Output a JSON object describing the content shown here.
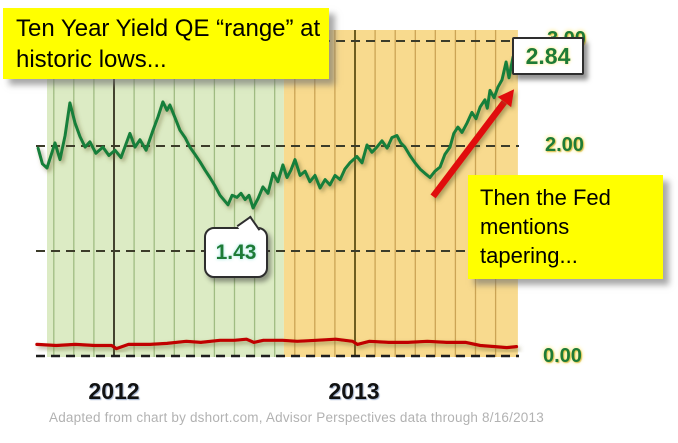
{
  "caption": "Adapted from chart by dshort.com, Advisor Perspectives data through 8/16/2013",
  "callouts": {
    "qe_range_lines": [
      "Ten Year Yield QE “range” at",
      "historic lows..."
    ],
    "tapering": "Then the Fed mentions tapering..."
  },
  "annotations": {
    "peak_label": "2.84",
    "low_label": "1.43"
  },
  "axis": {
    "y_ticks": [
      {
        "label": "3.00"
      },
      {
        "label": "2.00"
      },
      {
        "label": "0.00"
      }
    ],
    "x_ticks": [
      {
        "label": "2012"
      },
      {
        "label": "2013"
      }
    ]
  },
  "colors": {
    "qe_green_region": "#dcebc4",
    "orange_region": "#f8da8e",
    "yield_line_green": "#157f3a",
    "red_line": "#c00000",
    "range_line_blue": "#4d7ebc",
    "arrow_red": "#e01010",
    "callout_yellow": "#ffff00",
    "value_text_green": "#1e7b36"
  },
  "chart_data": {
    "type": "line",
    "title": "Ten Year Yield QE “range” at historic lows...",
    "x_axis": {
      "tick_labels": [
        "2012",
        "2013"
      ],
      "tick_positions_years": [
        2012,
        2013
      ],
      "range_years": [
        2011.66,
        2013.68
      ],
      "minor_gridline_interval_months": 1
    },
    "y_axis": {
      "tick_labels_visible": [
        "3.00",
        "2.00",
        "0.00"
      ],
      "gridline_values": [
        0,
        1,
        2,
        3
      ],
      "range": [
        0,
        3.1
      ],
      "units": "percent"
    },
    "regions": [
      {
        "name": "green-shaded QE range period",
        "t_from": 2011.722,
        "t_to": 2012.705,
        "color": "#dcebc4"
      },
      {
        "name": "orange-shaded period",
        "t_from": 2012.705,
        "t_to": 2013.676,
        "color": "#f8da8e"
      }
    ],
    "series": [
      {
        "name": "10-Year Treasury Yield",
        "color": "#157f3a",
        "points": [
          [
            2011.685,
            1.98
          ],
          [
            2011.703,
            1.83
          ],
          [
            2011.722,
            1.79
          ],
          [
            2011.755,
            2.03
          ],
          [
            2011.776,
            1.87
          ],
          [
            2011.797,
            2.1
          ],
          [
            2011.817,
            2.41
          ],
          [
            2011.838,
            2.22
          ],
          [
            2011.859,
            2.09
          ],
          [
            2011.88,
            1.99
          ],
          [
            2011.9,
            2.04
          ],
          [
            2011.925,
            1.93
          ],
          [
            2011.954,
            1.99
          ],
          [
            2011.979,
            1.91
          ],
          [
            2012.004,
            1.96
          ],
          [
            2012.029,
            1.89
          ],
          [
            2012.066,
            2.12
          ],
          [
            2012.087,
            1.99
          ],
          [
            2012.108,
            2.06
          ],
          [
            2012.133,
            1.96
          ],
          [
            2012.162,
            2.15
          ],
          [
            2012.183,
            2.28
          ],
          [
            2012.203,
            2.42
          ],
          [
            2012.22,
            2.34
          ],
          [
            2012.232,
            2.39
          ],
          [
            2012.253,
            2.27
          ],
          [
            2012.274,
            2.15
          ],
          [
            2012.295,
            2.08
          ],
          [
            2012.315,
            1.99
          ],
          [
            2012.336,
            1.92
          ],
          [
            2012.357,
            1.85
          ],
          [
            2012.378,
            1.77
          ],
          [
            2012.398,
            1.7
          ],
          [
            2012.419,
            1.62
          ],
          [
            2012.44,
            1.53
          ],
          [
            2012.473,
            1.44
          ],
          [
            2012.49,
            1.53
          ],
          [
            2012.51,
            1.51
          ],
          [
            2012.527,
            1.55
          ],
          [
            2012.544,
            1.49
          ],
          [
            2012.56,
            1.53
          ],
          [
            2012.577,
            1.41
          ],
          [
            2012.598,
            1.5
          ],
          [
            2012.618,
            1.61
          ],
          [
            2012.639,
            1.55
          ],
          [
            2012.66,
            1.74
          ],
          [
            2012.68,
            1.66
          ],
          [
            2012.701,
            1.82
          ],
          [
            2012.718,
            1.7
          ],
          [
            2012.734,
            1.77
          ],
          [
            2012.751,
            1.87
          ],
          [
            2012.772,
            1.72
          ],
          [
            2012.793,
            1.76
          ],
          [
            2012.813,
            1.66
          ],
          [
            2012.834,
            1.72
          ],
          [
            2012.855,
            1.6
          ],
          [
            2012.876,
            1.68
          ],
          [
            2012.896,
            1.63
          ],
          [
            2012.917,
            1.72
          ],
          [
            2012.938,
            1.68
          ],
          [
            2012.958,
            1.78
          ],
          [
            2012.979,
            1.84
          ],
          [
            2013.008,
            1.9
          ],
          [
            2013.029,
            1.84
          ],
          [
            2013.05,
            2.01
          ],
          [
            2013.07,
            1.94
          ],
          [
            2013.091,
            1.99
          ],
          [
            2013.112,
            2.05
          ],
          [
            2013.133,
            1.98
          ],
          [
            2013.153,
            2.08
          ],
          [
            2013.174,
            2.1
          ],
          [
            2013.19,
            2.03
          ],
          [
            2013.207,
            1.99
          ],
          [
            2013.228,
            1.91
          ],
          [
            2013.249,
            1.84
          ],
          [
            2013.27,
            1.78
          ],
          [
            2013.29,
            1.74
          ],
          [
            2013.311,
            1.7
          ],
          [
            2013.332,
            1.76
          ],
          [
            2013.353,
            1.8
          ],
          [
            2013.373,
            1.92
          ],
          [
            2013.394,
            1.99
          ],
          [
            2013.41,
            2.12
          ],
          [
            2013.427,
            2.18
          ],
          [
            2013.444,
            2.13
          ],
          [
            2013.465,
            2.22
          ],
          [
            2013.485,
            2.32
          ],
          [
            2013.502,
            2.26
          ],
          [
            2013.519,
            2.37
          ],
          [
            2013.539,
            2.44
          ],
          [
            2013.549,
            2.36
          ],
          [
            2013.56,
            2.53
          ],
          [
            2013.577,
            2.46
          ],
          [
            2013.593,
            2.56
          ],
          [
            2013.61,
            2.63
          ],
          [
            2013.627,
            2.8
          ],
          [
            2013.639,
            2.65
          ],
          [
            2013.656,
            2.85
          ],
          [
            2013.668,
            2.84
          ]
        ]
      },
      {
        "name": "Unlabeled red line near zero (short-term rate)",
        "color": "#c00000",
        "points": [
          [
            2011.68,
            0.11
          ],
          [
            2011.76,
            0.1
          ],
          [
            2011.84,
            0.11
          ],
          [
            2011.92,
            0.1
          ],
          [
            2011.99,
            0.1
          ],
          [
            2012.01,
            0.07
          ],
          [
            2012.06,
            0.11
          ],
          [
            2012.15,
            0.11
          ],
          [
            2012.22,
            0.12
          ],
          [
            2012.3,
            0.14
          ],
          [
            2012.36,
            0.13
          ],
          [
            2012.44,
            0.15
          ],
          [
            2012.5,
            0.15
          ],
          [
            2012.55,
            0.16
          ],
          [
            2012.58,
            0.13
          ],
          [
            2012.62,
            0.15
          ],
          [
            2012.7,
            0.15
          ],
          [
            2012.76,
            0.14
          ],
          [
            2012.84,
            0.15
          ],
          [
            2012.92,
            0.16
          ],
          [
            2012.99,
            0.14
          ],
          [
            2013.01,
            0.11
          ],
          [
            2013.06,
            0.14
          ],
          [
            2013.14,
            0.13
          ],
          [
            2013.22,
            0.13
          ],
          [
            2013.3,
            0.14
          ],
          [
            2013.38,
            0.13
          ],
          [
            2013.46,
            0.13
          ],
          [
            2013.52,
            0.1
          ],
          [
            2013.58,
            0.09
          ],
          [
            2013.63,
            0.08
          ],
          [
            2013.67,
            0.09
          ]
        ]
      }
    ],
    "annotations": {
      "peak_label": "2.84",
      "peak_point": {
        "t": 2013.668,
        "value": 2.84
      },
      "low_label": "1.43",
      "low_point": {
        "t": 2012.577,
        "value": 1.43
      },
      "range_lines": [
        {
          "value": 2.54,
          "t_from": 2011.764,
          "t_to": 2012.9
        },
        {
          "value": 1.38,
          "t_from": 2011.764,
          "t_to": 2012.9
        }
      ],
      "arrow": {
        "from": {
          "t": 2013.324,
          "value": 1.52
        },
        "to": {
          "t": 2013.66,
          "value": 2.54
        }
      },
      "callout_texts": [
        "Ten Year Yield QE “range” at historic lows...",
        "Then the Fed mentions tapering..."
      ]
    },
    "legend": "none"
  }
}
